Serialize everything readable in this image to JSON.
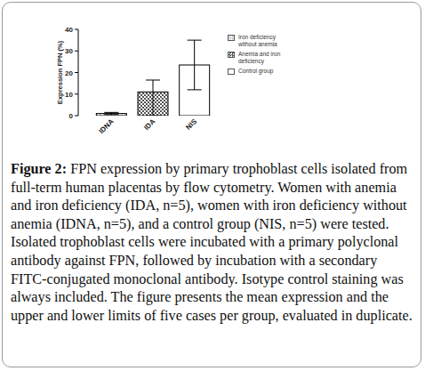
{
  "chart_data": {
    "type": "bar",
    "y_label": "Expression FPN (%)",
    "categories": [
      "IDNA",
      "IDA",
      "NIS"
    ],
    "values": [
      1,
      11,
      23.5
    ],
    "lower": [
      0.5,
      0,
      12
    ],
    "upper": [
      1.5,
      16.5,
      35
    ],
    "colors": [
      "#c8c8c8",
      "#555555",
      "#ffffff"
    ],
    "legend_labels": [
      "Iron deficiency without anemia",
      "Anemia and iron deficiency",
      "Control group"
    ],
    "legend": "upper right",
    "ylim": [
      0,
      40
    ],
    "yticks": [
      0,
      10,
      20,
      30,
      40
    ],
    "grid": false
  },
  "caption": {
    "label": "Figure 2:",
    "text": "FPN expression by primary trophoblast cells isolated from full-term human placentas by flow cytometry. Women with anemia and iron deficiency (IDA, n=5), women with iron deficiency without anemia (IDNA, n=5), and a control group (NIS, n=5) were tested. Isolated trophoblast cells were incubated with a primary polyclonal antibody against FPN, followed by incubation with a secondary FITC-conjugated monoclonal antibody. Isotype control staining was always included. The figure presents the mean expression and the upper and lower limits of five cases per group, evaluated in duplicate."
  }
}
